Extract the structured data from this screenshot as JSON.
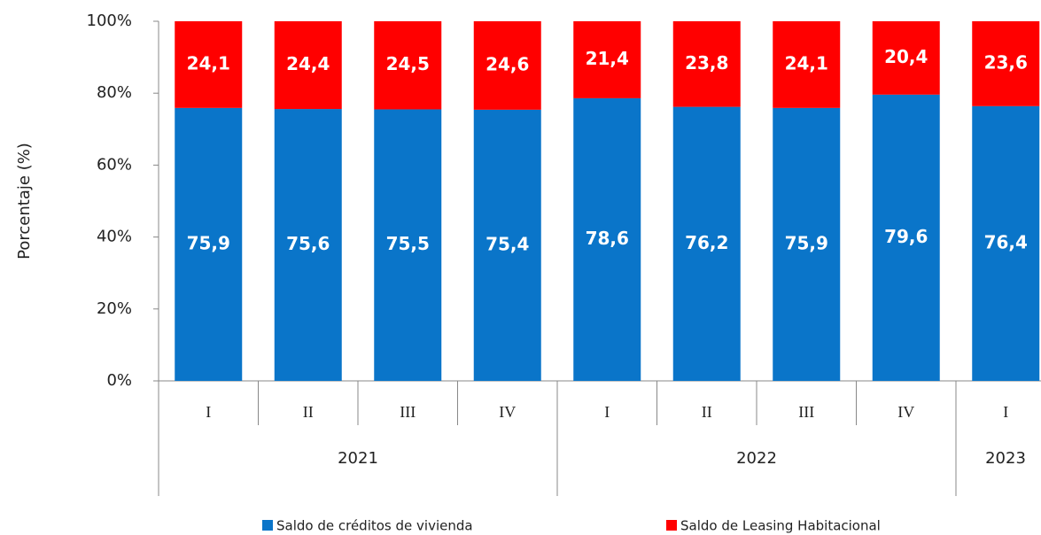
{
  "chart_data": {
    "type": "stacked_bar",
    "y_label": "Porcentaje (%)",
    "categories": [
      "I",
      "II",
      "III",
      "IV",
      "I",
      "II",
      "III",
      "IV",
      "I"
    ],
    "years": [
      "2021",
      "2021",
      "2021",
      "2021",
      "2022",
      "2022",
      "2022",
      "2022",
      "2023"
    ],
    "series": [
      {
        "name": "Saldo de créditos de vivienda",
        "color": "#0a75c9",
        "values": [
          75.9,
          75.6,
          75.5,
          75.4,
          78.6,
          76.2,
          75.9,
          79.6,
          76.4
        ],
        "value_labels": [
          "75,9",
          "75,6",
          "75,5",
          "75,4",
          "78,6",
          "76,2",
          "75,9",
          "79,6",
          "76,4"
        ]
      },
      {
        "name": "Saldo de Leasing Habitacional",
        "color": "#ff0000",
        "values": [
          24.1,
          24.4,
          24.5,
          24.6,
          21.4,
          23.8,
          24.1,
          20.4,
          23.6
        ],
        "value_labels": [
          "24,1",
          "24,4",
          "24,5",
          "24,6",
          "21,4",
          "23,8",
          "24,1",
          "20,4",
          "23,6"
        ]
      }
    ],
    "ylim": [
      0,
      100
    ],
    "yticks": [
      {
        "value": 0,
        "label": "0%"
      },
      {
        "value": 20,
        "label": "20%"
      },
      {
        "value": 40,
        "label": "40%"
      },
      {
        "value": 60,
        "label": "60%"
      },
      {
        "value": 80,
        "label": "80%"
      },
      {
        "value": 100,
        "label": "100%"
      }
    ],
    "legend": "bottom"
  }
}
